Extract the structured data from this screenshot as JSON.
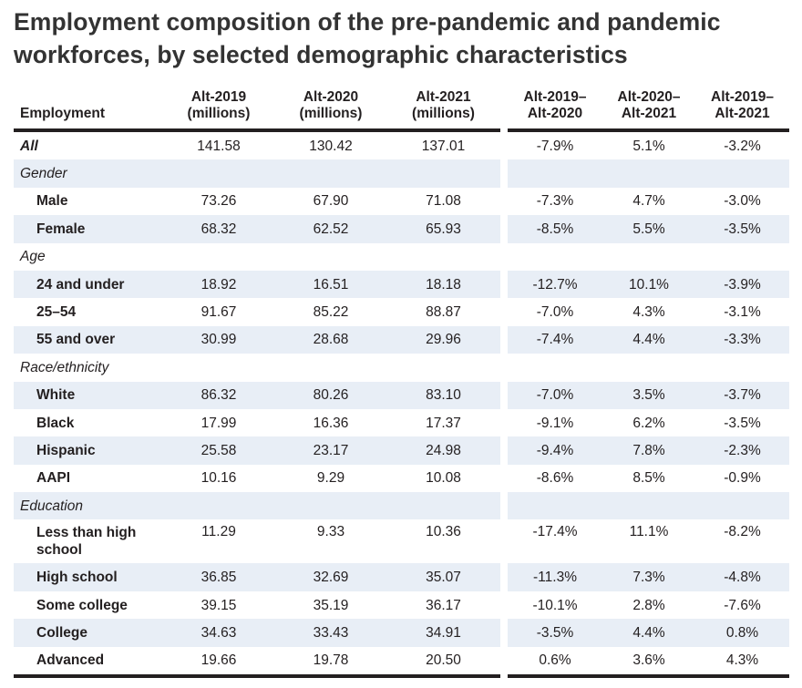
{
  "title": "Employment composition of the pre-pandemic and pandemic workforces, by selected demographic characteristics",
  "chart_data": {
    "type": "table",
    "title": "Employment composition of the pre-pandemic and pandemic workforces, by selected demographic characteristics",
    "columns": [
      "Employment",
      "Alt-2019 (millions)",
      "Alt-2020 (millions)",
      "Alt-2021 (millions)",
      "Alt-2019–Alt-2020",
      "Alt-2020–Alt-2021",
      "Alt-2019–Alt-2021"
    ],
    "headers": {
      "label": "Employment",
      "col1": [
        "Alt-2019",
        "(millions)"
      ],
      "col2": [
        "Alt-2020",
        "(millions)"
      ],
      "col3": [
        "Alt-2021",
        "(millions)"
      ],
      "col4": [
        "Alt-2019–",
        "Alt-2020"
      ],
      "col5": [
        "Alt-2020–",
        "Alt-2021"
      ],
      "col6": [
        "Alt-2019–",
        "Alt-2021"
      ]
    },
    "rows": [
      {
        "label": "All",
        "kind": "total",
        "shade": false,
        "values": [
          "141.58",
          "130.42",
          "137.01",
          "-7.9%",
          "5.1%",
          "-3.2%"
        ]
      },
      {
        "label": "Gender",
        "kind": "group",
        "shade": true,
        "values": []
      },
      {
        "label": "Male",
        "kind": "item",
        "shade": false,
        "values": [
          "73.26",
          "67.90",
          "71.08",
          "-7.3%",
          "4.7%",
          "-3.0%"
        ]
      },
      {
        "label": "Female",
        "kind": "item",
        "shade": true,
        "values": [
          "68.32",
          "62.52",
          "65.93",
          "-8.5%",
          "5.5%",
          "-3.5%"
        ]
      },
      {
        "label": "Age",
        "kind": "group",
        "shade": false,
        "values": []
      },
      {
        "label": "24 and under",
        "kind": "item",
        "shade": true,
        "values": [
          "18.92",
          "16.51",
          "18.18",
          "-12.7%",
          "10.1%",
          "-3.9%"
        ]
      },
      {
        "label": "25–54",
        "kind": "item",
        "shade": false,
        "values": [
          "91.67",
          "85.22",
          "88.87",
          "-7.0%",
          "4.3%",
          "-3.1%"
        ]
      },
      {
        "label": "55 and over",
        "kind": "item",
        "shade": true,
        "values": [
          "30.99",
          "28.68",
          "29.96",
          "-7.4%",
          "4.4%",
          "-3.3%"
        ]
      },
      {
        "label": "Race/ethnicity",
        "kind": "group",
        "shade": false,
        "values": []
      },
      {
        "label": "White",
        "kind": "item",
        "shade": true,
        "values": [
          "86.32",
          "80.26",
          "83.10",
          "-7.0%",
          "3.5%",
          "-3.7%"
        ]
      },
      {
        "label": "Black",
        "kind": "item",
        "shade": false,
        "values": [
          "17.99",
          "16.36",
          "17.37",
          "-9.1%",
          "6.2%",
          "-3.5%"
        ]
      },
      {
        "label": "Hispanic",
        "kind": "item",
        "shade": true,
        "values": [
          "25.58",
          "23.17",
          "24.98",
          "-9.4%",
          "7.8%",
          "-2.3%"
        ]
      },
      {
        "label": "AAPI",
        "kind": "item",
        "shade": false,
        "values": [
          "10.16",
          "9.29",
          "10.08",
          "-8.6%",
          "8.5%",
          "-0.9%"
        ]
      },
      {
        "label": "Education",
        "kind": "group",
        "shade": true,
        "values": []
      },
      {
        "label": "Less than high school",
        "kind": "item",
        "shade": false,
        "tall": true,
        "values": [
          "11.29",
          "9.33",
          "10.36",
          "-17.4%",
          "11.1%",
          "-8.2%"
        ]
      },
      {
        "label": "High school",
        "kind": "item",
        "shade": true,
        "values": [
          "36.85",
          "32.69",
          "35.07",
          "-11.3%",
          "7.3%",
          "-4.8%"
        ]
      },
      {
        "label": "Some college",
        "kind": "item",
        "shade": false,
        "values": [
          "39.15",
          "35.19",
          "36.17",
          "-10.1%",
          "2.8%",
          "-7.6%"
        ]
      },
      {
        "label": "College",
        "kind": "item",
        "shade": true,
        "values": [
          "34.63",
          "33.43",
          "34.91",
          "-3.5%",
          "4.4%",
          "0.8%"
        ]
      },
      {
        "label": "Advanced",
        "kind": "item",
        "shade": false,
        "values": [
          "19.66",
          "19.78",
          "20.50",
          "0.6%",
          "3.6%",
          "4.3%"
        ]
      }
    ]
  },
  "colors": {
    "shade": "#e8eef6",
    "rule": "#231f20",
    "title": "#333333"
  }
}
